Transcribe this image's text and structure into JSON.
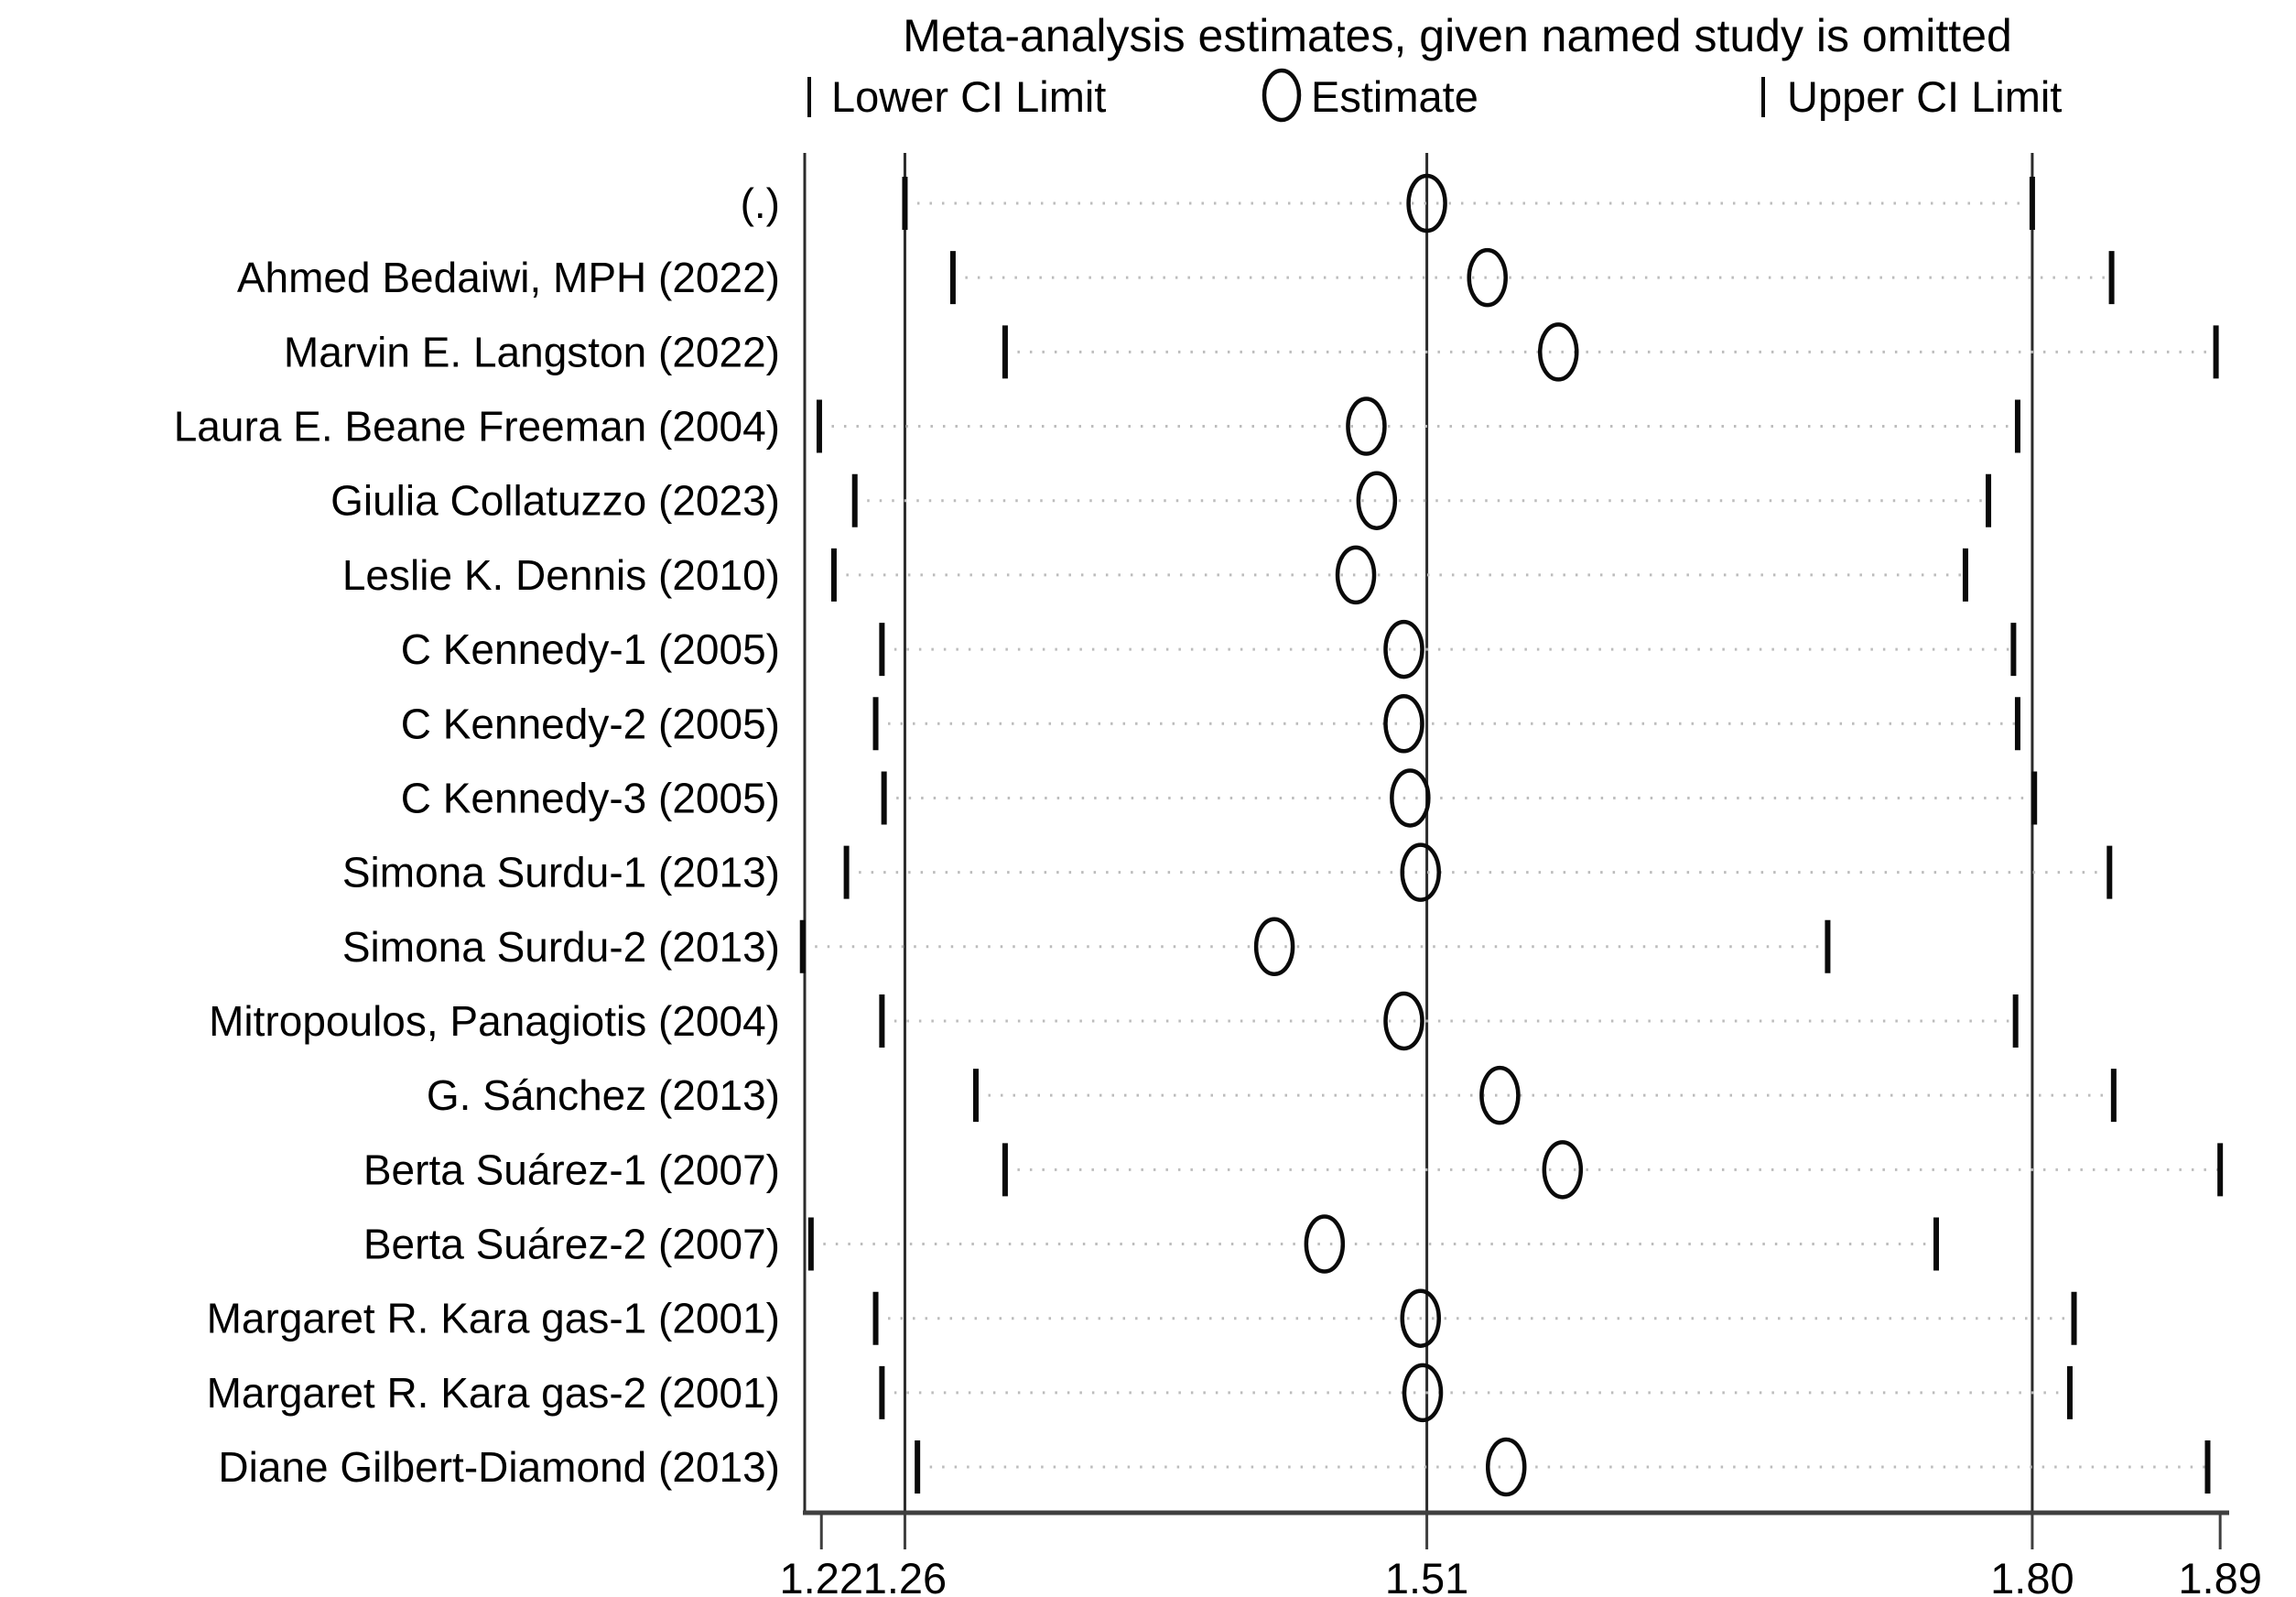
{
  "chart_data": {
    "type": "scatter",
    "subtype": "leave-one-out-sensitivity-forest-plot",
    "title": "Meta-analysis estimates, given named study is omitted",
    "legend": {
      "lower": "Lower CI Limit",
      "estimate": "Estimate",
      "upper": "Upper CI Limit"
    },
    "legend_position": "top",
    "xlabel": "",
    "ylabel": "",
    "xlim": [
      1.212,
      1.893
    ],
    "x_ticks": [
      1.22,
      1.26,
      1.51,
      1.8,
      1.89
    ],
    "x_tick_labels": [
      "1.22",
      "1.26",
      "1.51",
      "1.80",
      "1.89"
    ],
    "reference_lines": [
      1.26,
      1.51,
      1.8
    ],
    "grid": "dotted horizontal row leaders only",
    "rows": [
      {
        "study": "(.)",
        "lower": 1.26,
        "estimate": 1.51,
        "upper": 1.8
      },
      {
        "study": "Ahmed Bedaiwi, MPH (2022)",
        "lower": 1.283,
        "estimate": 1.539,
        "upper": 1.838
      },
      {
        "study": "Marvin E. Langston (2022)",
        "lower": 1.308,
        "estimate": 1.573,
        "upper": 1.888
      },
      {
        "study": "Laura E. Beane Freeman (2004)",
        "lower": 1.219,
        "estimate": 1.481,
        "upper": 1.793
      },
      {
        "study": "Giulia Collatuzzo (2023)",
        "lower": 1.236,
        "estimate": 1.486,
        "upper": 1.779
      },
      {
        "study": "Leslie K. Dennis (2010)",
        "lower": 1.226,
        "estimate": 1.476,
        "upper": 1.768
      },
      {
        "study": "C Kennedy-1 (2005)",
        "lower": 1.249,
        "estimate": 1.499,
        "upper": 1.791
      },
      {
        "study": "C Kennedy-2 (2005)",
        "lower": 1.246,
        "estimate": 1.499,
        "upper": 1.793
      },
      {
        "study": "C Kennedy-3 (2005)",
        "lower": 1.25,
        "estimate": 1.502,
        "upper": 1.801
      },
      {
        "study": "Simona Surdu-1 (2013)",
        "lower": 1.232,
        "estimate": 1.507,
        "upper": 1.837
      },
      {
        "study": "Simona Surdu-2 (2013)",
        "lower": 1.211,
        "estimate": 1.437,
        "upper": 1.702
      },
      {
        "study": "Mitropoulos, Panagiotis (2004)",
        "lower": 1.249,
        "estimate": 1.499,
        "upper": 1.792
      },
      {
        "study": "G. Sánchez (2013)",
        "lower": 1.294,
        "estimate": 1.545,
        "upper": 1.839
      },
      {
        "study": "Berta Suárez-1 (2007)",
        "lower": 1.308,
        "estimate": 1.575,
        "upper": 1.89
      },
      {
        "study": "Berta Suárez-2 (2007)",
        "lower": 1.215,
        "estimate": 1.461,
        "upper": 1.754
      },
      {
        "study": "Margaret R. Kara gas-1 (2001)",
        "lower": 1.246,
        "estimate": 1.507,
        "upper": 1.82
      },
      {
        "study": "Margaret R. Kara gas-2 (2001)",
        "lower": 1.249,
        "estimate": 1.508,
        "upper": 1.818
      },
      {
        "study": "Diane Gilbert-Diamond (2013)",
        "lower": 1.266,
        "estimate": 1.548,
        "upper": 1.884
      }
    ],
    "colors": {
      "marker": "#0a0a0a",
      "leader_dots": "#bcbcbc",
      "reference_line": "#2b2b2b",
      "axis": "#3f3f3f",
      "background": "#ffffff"
    }
  }
}
